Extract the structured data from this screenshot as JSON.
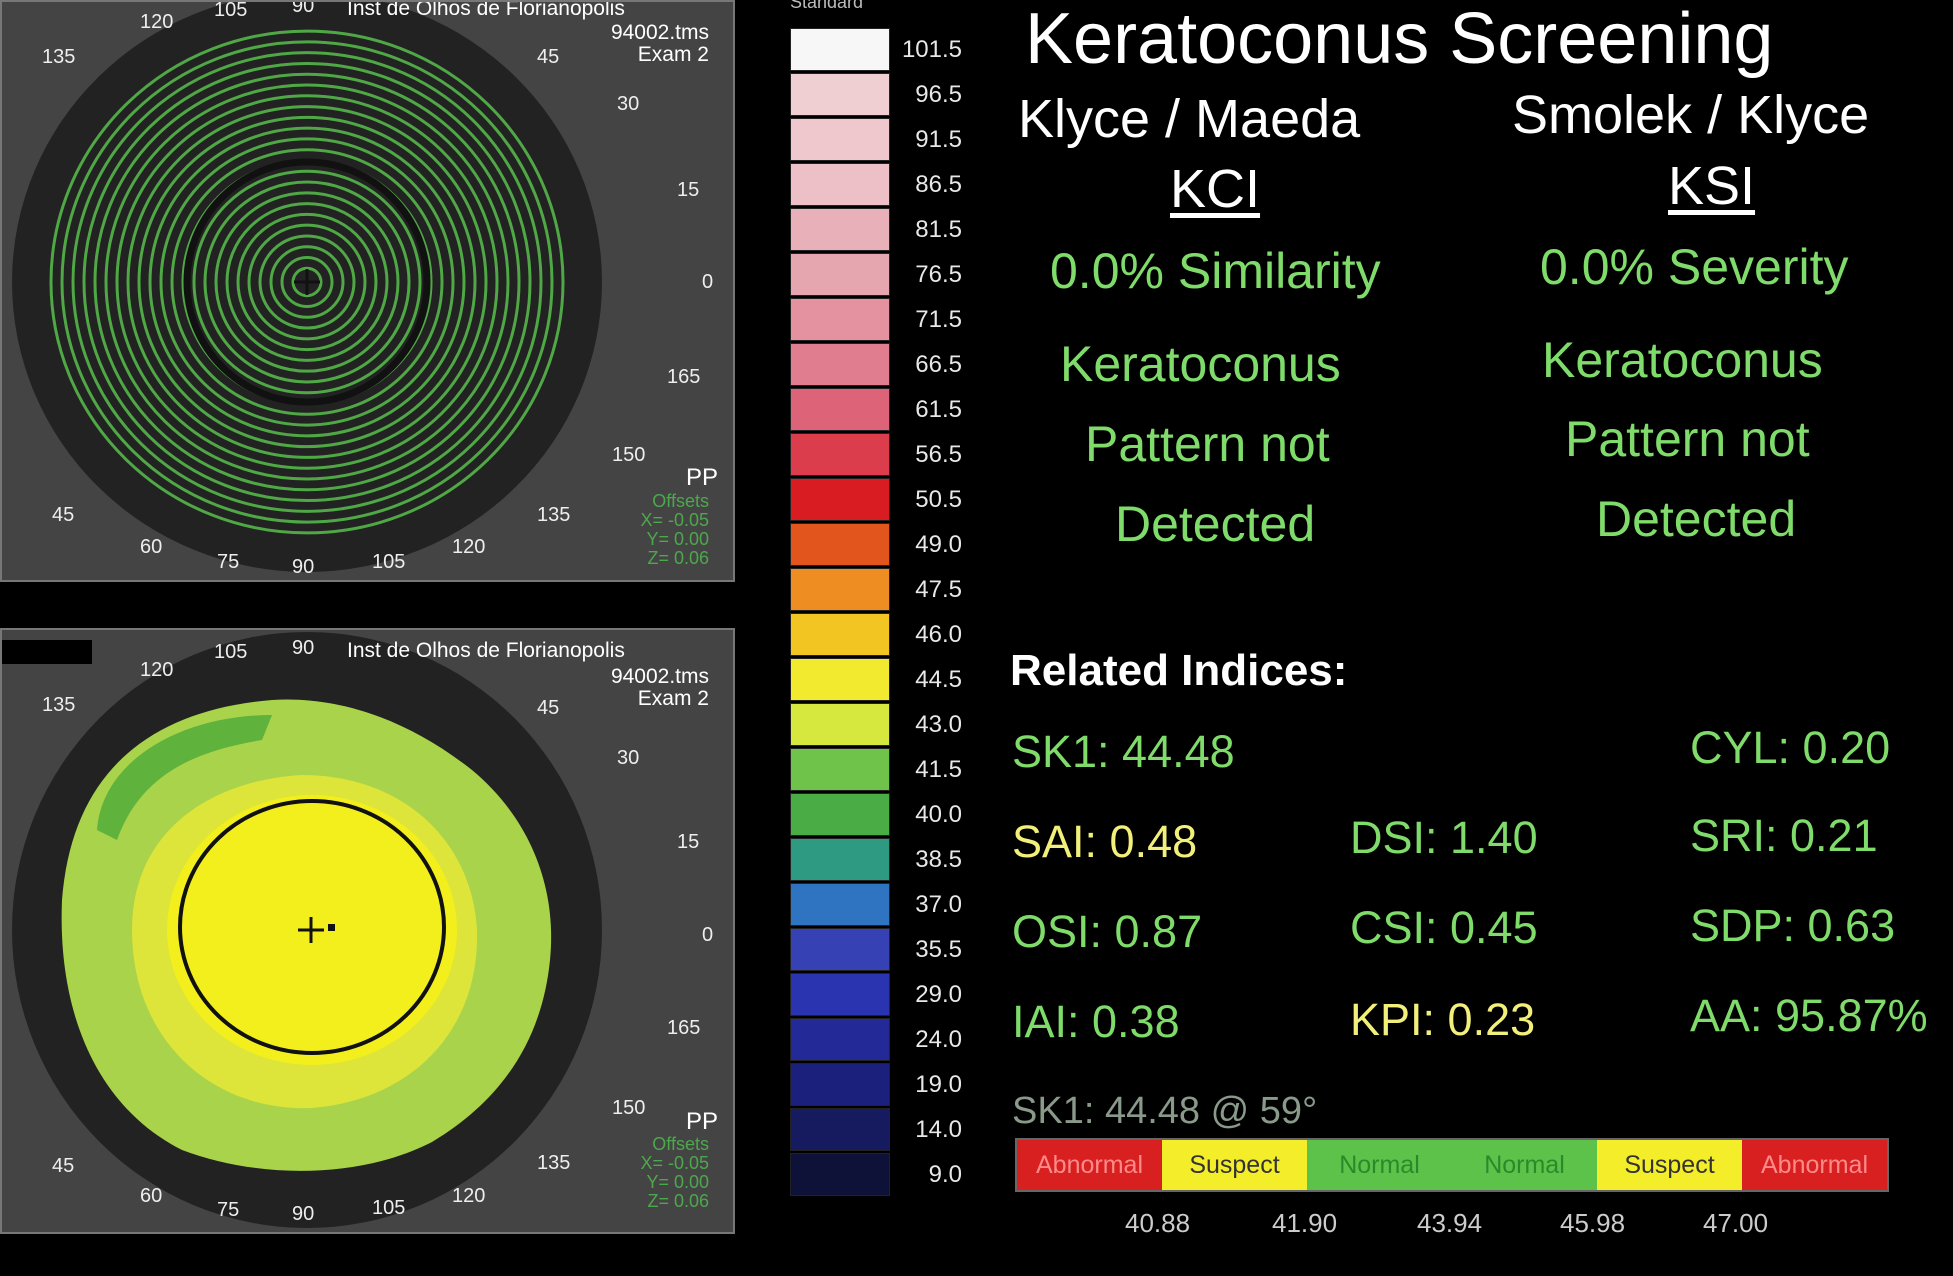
{
  "panel_top": {
    "institution": "Inst de Olhos de Florianopolis",
    "file": "94002.tms",
    "exam": "Exam 2",
    "pp": "PP",
    "offsets": "Offsets\nX= -0.05\nY= 0.00\nZ= 0.06",
    "degrees": [
      "120",
      "105",
      "90",
      "135",
      "45",
      "30",
      "15",
      "0",
      "165",
      "150",
      "135",
      "120",
      "105",
      "90",
      "75",
      "60",
      "45"
    ]
  },
  "panel_bottom": {
    "institution": "Inst de Olhos de Florianopolis",
    "file": "94002.tms",
    "exam": "Exam 2",
    "pp": "PP",
    "offsets": "Offsets\nX= -0.05\nY= 0.00\nZ= 0.06",
    "degrees": [
      "120",
      "105",
      "90",
      "135",
      "45",
      "30",
      "15",
      "0",
      "165",
      "150",
      "135",
      "120",
      "105",
      "90",
      "75",
      "60",
      "45"
    ]
  },
  "scale": {
    "title": "Standard",
    "labels": [
      "101.5",
      "96.5",
      "91.5",
      "86.5",
      "81.5",
      "76.5",
      "71.5",
      "66.5",
      "61.5",
      "56.5",
      "50.5",
      "49.0",
      "47.5",
      "46.0",
      "44.5",
      "43.0",
      "41.5",
      "40.0",
      "38.5",
      "37.0",
      "35.5",
      "29.0",
      "24.0",
      "19.0",
      "14.0",
      "9.0"
    ],
    "colors": [
      "#f7f7f7",
      "#f0cfd3",
      "#efc8cd",
      "#ecc0c6",
      "#e8b0b8",
      "#e6a6b0",
      "#e492a0",
      "#e07e90",
      "#dd6378",
      "#dc3d4c",
      "#d81c22",
      "#e2561e",
      "#ee8e22",
      "#f3c522",
      "#f2ea2e",
      "#d6e83e",
      "#6fc24a",
      "#49ac44",
      "#2e9a82",
      "#2f74c0",
      "#3642b4",
      "#2b34b0",
      "#232a98",
      "#1b207c",
      "#161a5e",
      "#0e1138"
    ]
  },
  "title": "Keratoconus Screening",
  "kci": {
    "author": "Klyce / Maeda",
    "abbr": "KCI",
    "result": "0.0% Similarity",
    "line1": "Keratoconus",
    "line2": "Pattern not",
    "line3": "Detected"
  },
  "ksi": {
    "author": "Smolek / Klyce",
    "abbr": "KSI",
    "result": "0.0% Severity",
    "line1": "Keratoconus",
    "line2": "Pattern not",
    "line3": "Detected"
  },
  "related": {
    "heading": "Related Indices:",
    "sk1": "SK1: 44.48",
    "cyl": "CYL:  0.20",
    "sai": "SAI: 0.48",
    "dsi": "DSI: 1.40",
    "sri": "SRI: 0.21",
    "osi": "OSI: 0.87",
    "csi": "CSI: 0.45",
    "sdp": "SDP: 0.63",
    "iai": "IAI: 0.38",
    "kpi": "KPI: 0.23",
    "aa": "AA: 95.87%",
    "sk1_axis": "SK1: 44.48 @ 59°"
  },
  "bar": {
    "segments": [
      "Abnormal",
      "Suspect",
      "Normal",
      "Normal",
      "Suspect",
      "Abnormal"
    ],
    "colors": [
      "#d82020",
      "#f4ee2a",
      "#5cc24a",
      "#5cc24a",
      "#f4ee2a",
      "#d82020"
    ],
    "text_colors": [
      "#ff8a8a",
      "#333333",
      "#2a8a2a",
      "#2a8a2a",
      "#333333",
      "#ff8a8a"
    ],
    "ticks": [
      "40.88",
      "41.90",
      "43.94",
      "45.98",
      "47.00"
    ]
  },
  "colors": {
    "green_text": "#7fdb6a",
    "yellow_text": "#f2f07a"
  }
}
